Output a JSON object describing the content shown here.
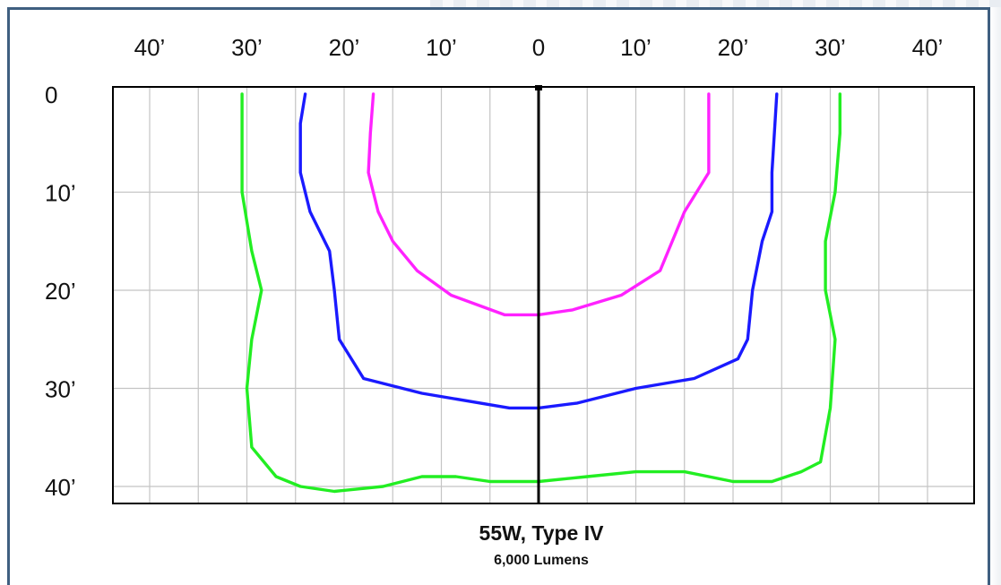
{
  "chart_data": {
    "type": "line",
    "title": "55W, Type IV",
    "subtitle": "6,000 Lumens",
    "xlabel": "",
    "ylabel": "",
    "x_ticks": [
      {
        "value": -40,
        "label": "40’"
      },
      {
        "value": -30,
        "label": "30’"
      },
      {
        "value": -20,
        "label": "20’"
      },
      {
        "value": -10,
        "label": "10’"
      },
      {
        "value": 0,
        "label": "0"
      },
      {
        "value": 10,
        "label": "10’"
      },
      {
        "value": 20,
        "label": "20’"
      },
      {
        "value": 30,
        "label": "30’"
      },
      {
        "value": 40,
        "label": "40’"
      }
    ],
    "y_ticks": [
      {
        "value": 0,
        "label": "0"
      },
      {
        "value": 10,
        "label": "10’"
      },
      {
        "value": 20,
        "label": "20’"
      },
      {
        "value": 30,
        "label": "30’"
      },
      {
        "value": 40,
        "label": "40’"
      }
    ],
    "xlim": [
      -44,
      44
    ],
    "ylim": [
      0,
      43
    ],
    "grid": true,
    "series": [
      {
        "color": "#ff22ff",
        "points": [
          [
            -17,
            0
          ],
          [
            -17.3,
            4
          ],
          [
            -17.5,
            8
          ],
          [
            -16.5,
            12
          ],
          [
            -15,
            15
          ],
          [
            -12.5,
            18
          ],
          [
            -9,
            20.5
          ],
          [
            -3.5,
            22.5
          ],
          [
            0,
            22.5
          ],
          [
            3.5,
            22
          ],
          [
            8.5,
            20.5
          ],
          [
            12.5,
            18
          ],
          [
            15,
            12
          ],
          [
            17.5,
            8
          ],
          [
            17.5,
            4
          ],
          [
            17.5,
            0
          ]
        ]
      },
      {
        "color": "#1a1aff",
        "points": [
          [
            -24,
            0
          ],
          [
            -24.5,
            3
          ],
          [
            -24.5,
            8
          ],
          [
            -23.5,
            12
          ],
          [
            -21.5,
            16
          ],
          [
            -21,
            20
          ],
          [
            -20.5,
            25
          ],
          [
            -18,
            29
          ],
          [
            -12,
            30.5
          ],
          [
            -3,
            32
          ],
          [
            0,
            32
          ],
          [
            4,
            31.5
          ],
          [
            10,
            30
          ],
          [
            16,
            29
          ],
          [
            20.5,
            27
          ],
          [
            21.5,
            25
          ],
          [
            22,
            20
          ],
          [
            23,
            15
          ],
          [
            24,
            12
          ],
          [
            24,
            8
          ],
          [
            24.5,
            0
          ]
        ]
      },
      {
        "color": "#22ee22",
        "points": [
          [
            -30.5,
            0
          ],
          [
            -30.5,
            4
          ],
          [
            -30.5,
            10
          ],
          [
            -29.5,
            16
          ],
          [
            -28.5,
            20
          ],
          [
            -29.5,
            25
          ],
          [
            -30,
            30
          ],
          [
            -29.5,
            36
          ],
          [
            -27,
            39
          ],
          [
            -24.5,
            40
          ],
          [
            -21,
            40.5
          ],
          [
            -16,
            40
          ],
          [
            -12,
            39
          ],
          [
            -8.5,
            39
          ],
          [
            -5,
            39.5
          ],
          [
            0,
            39.5
          ],
          [
            5,
            39
          ],
          [
            10,
            38.5
          ],
          [
            15,
            38.5
          ],
          [
            20,
            39.5
          ],
          [
            24,
            39.5
          ],
          [
            27,
            38.5
          ],
          [
            29,
            37.5
          ],
          [
            30,
            32
          ],
          [
            30.5,
            25
          ],
          [
            29.5,
            20
          ],
          [
            29.5,
            15
          ],
          [
            30.5,
            10
          ],
          [
            31,
            4
          ],
          [
            31,
            0
          ]
        ]
      }
    ],
    "center_line": {
      "color": "#000000",
      "x": 0
    }
  }
}
